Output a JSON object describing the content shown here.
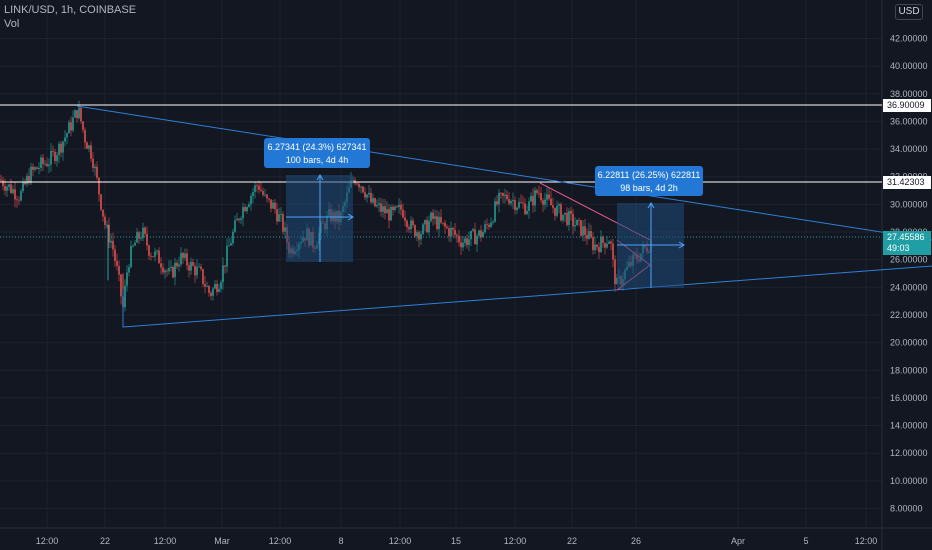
{
  "header": {
    "symbol_line": "LINK/USD, 1h, COINBASE",
    "indicator": "Vol"
  },
  "currency_button": "USD",
  "colors": {
    "background": "#131722",
    "grid": "#1e222d",
    "axis_text": "#b2b5be",
    "up_candle": "#26a69a",
    "down_candle": "#ef5350",
    "trendline": "#2f7fd6",
    "horizontal_level": "#ffffff",
    "projection_box": "#1f4b7a",
    "label_bg": "#2278d4",
    "last_price_bg": "#1f9ea4"
  },
  "chart_data": {
    "type": "candlestick",
    "y_axis": {
      "range": [
        7.0,
        44.0
      ],
      "ticks": [
        "8.00000",
        "10.00000",
        "12.00000",
        "14.00000",
        "16.00000",
        "18.00000",
        "20.00000",
        "22.00000",
        "24.00000",
        "26.00000",
        "28.00000",
        "30.00000",
        "32.00000",
        "34.00000",
        "36.00000",
        "38.00000",
        "40.00000",
        "42.00000"
      ]
    },
    "x_axis": {
      "ticks": [
        "12:00",
        "22",
        "12:00",
        "Mar",
        "12:00",
        "8",
        "12:00",
        "15",
        "12:00",
        "22",
        "26",
        "Apr",
        "5",
        "12:00"
      ]
    },
    "price_path": [
      [
        0,
        31.8
      ],
      [
        10,
        31.2
      ],
      [
        20,
        30.6
      ],
      [
        30,
        32.2
      ],
      [
        40,
        32.8
      ],
      [
        50,
        33.2
      ],
      [
        60,
        34.2
      ],
      [
        70,
        35.6
      ],
      [
        78,
        36.9
      ],
      [
        85,
        34.8
      ],
      [
        92,
        33.6
      ],
      [
        100,
        30.5
      ],
      [
        106,
        28.2
      ],
      [
        112,
        27.2
      ],
      [
        118,
        24.8
      ],
      [
        123,
        22.5
      ],
      [
        128,
        25.8
      ],
      [
        135,
        27.2
      ],
      [
        142,
        28.0
      ],
      [
        150,
        26.6
      ],
      [
        160,
        26.0
      ],
      [
        170,
        24.8
      ],
      [
        180,
        26.2
      ],
      [
        190,
        25.6
      ],
      [
        200,
        25.0
      ],
      [
        210,
        23.5
      ],
      [
        220,
        24.6
      ],
      [
        230,
        27.2
      ],
      [
        240,
        29.4
      ],
      [
        250,
        30.6
      ],
      [
        258,
        31.5
      ],
      [
        266,
        30.2
      ],
      [
        274,
        29.8
      ],
      [
        282,
        28.6
      ],
      [
        290,
        26.6
      ],
      [
        298,
        27.4
      ],
      [
        306,
        27.9
      ],
      [
        314,
        27.1
      ],
      [
        322,
        28.3
      ],
      [
        330,
        29.2
      ],
      [
        340,
        28.9
      ],
      [
        348,
        30.8
      ],
      [
        354,
        32.0
      ],
      [
        362,
        31.4
      ],
      [
        372,
        30.0
      ],
      [
        382,
        29.6
      ],
      [
        392,
        29.2
      ],
      [
        402,
        29.7
      ],
      [
        412,
        28.2
      ],
      [
        422,
        28.0
      ],
      [
        432,
        29.0
      ],
      [
        442,
        28.4
      ],
      [
        452,
        28.0
      ],
      [
        462,
        27.3
      ],
      [
        472,
        27.6
      ],
      [
        482,
        27.9
      ],
      [
        490,
        28.8
      ],
      [
        498,
        30.2
      ],
      [
        508,
        30.6
      ],
      [
        518,
        30.0
      ],
      [
        528,
        29.8
      ],
      [
        538,
        31.0
      ],
      [
        548,
        30.1
      ],
      [
        558,
        29.5
      ],
      [
        568,
        29.0
      ],
      [
        578,
        28.4
      ],
      [
        586,
        27.9
      ],
      [
        594,
        27.0
      ],
      [
        602,
        27.2
      ],
      [
        610,
        27.6
      ],
      [
        614,
        25.0
      ],
      [
        617,
        24.1
      ],
      [
        624,
        25.0
      ],
      [
        632,
        25.8
      ],
      [
        640,
        26.4
      ],
      [
        648,
        27.0
      ],
      [
        652,
        27.45586
      ]
    ],
    "annotations": {
      "horizontal_levels": [
        "36.90009",
        "31.42303"
      ],
      "last_price": "27.45586",
      "countdown": "49:03",
      "measure_1": {
        "line1": "6.27341 (24.3%) 627341",
        "line2": "100 bars, 4d 4h"
      },
      "measure_2": {
        "line1": "6.22811 (26.25%) 622811",
        "line2": "98 bars, 4d 2h"
      }
    }
  }
}
